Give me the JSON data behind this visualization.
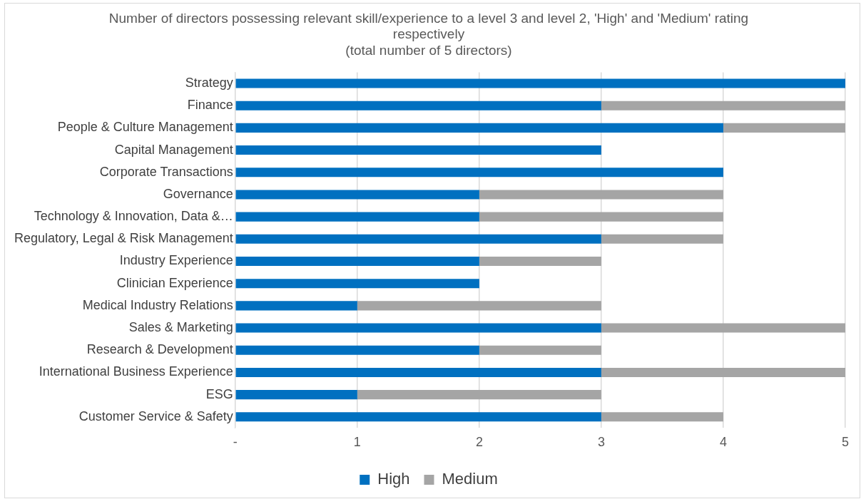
{
  "chart_data": {
    "type": "bar",
    "orientation": "horizontal",
    "stacked": true,
    "title": "Number of directors possessing relevant skill/experience to a level 3 and level 2, 'High' and 'Medium' rating respectively",
    "subtitle": "(total number of 5 directors)",
    "categories": [
      "Strategy",
      "Finance",
      "People & Culture Management",
      "Capital Management",
      "Corporate Transactions",
      "Governance",
      "Technology & Innovation, Data &…",
      "Regulatory, Legal & Risk Management",
      "Industry Experience",
      "Clinician Experience",
      "Medical Industry Relations",
      "Sales & Marketing",
      "Research & Development",
      "International Business Experience",
      "ESG",
      "Customer Service & Safety"
    ],
    "series": [
      {
        "name": "High",
        "color": "#0070c0",
        "values": [
          5,
          3,
          4,
          3,
          4,
          2,
          2,
          3,
          2,
          2,
          1,
          3,
          2,
          3,
          1,
          3
        ]
      },
      {
        "name": "Medium",
        "color": "#a5a5a5",
        "values": [
          0,
          2,
          1,
          0,
          0,
          2,
          2,
          1,
          1,
          0,
          2,
          2,
          1,
          2,
          2,
          1
        ]
      }
    ],
    "xlim": [
      0,
      5
    ],
    "xticks": [
      {
        "value": 0,
        "label": "-"
      },
      1,
      2,
      3,
      4,
      5
    ],
    "grid": "x",
    "legend": "bottom"
  }
}
